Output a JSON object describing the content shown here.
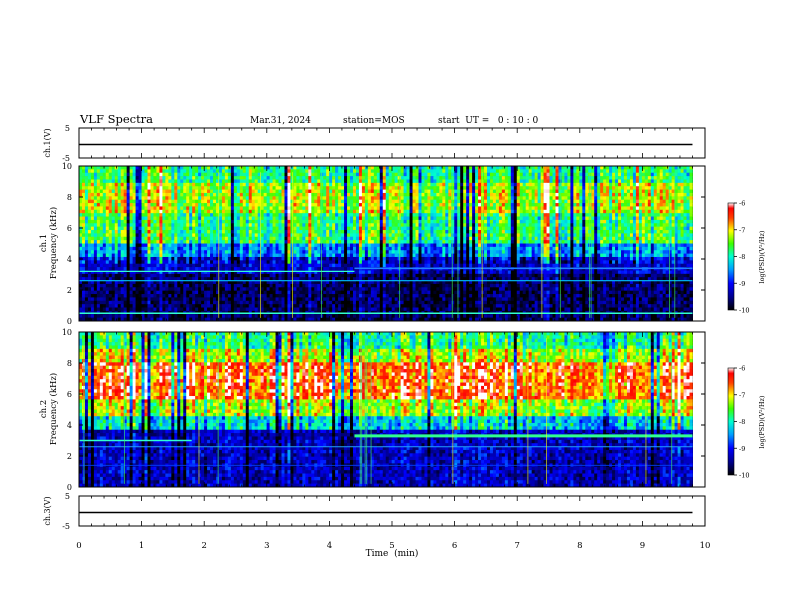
{
  "header": {
    "title": "VLF Spectra",
    "date": "Mar.31, 2024",
    "station": "station=MOS",
    "start_ut": "start  UT =   0 : 10 : 0"
  },
  "chart_data": [
    {
      "type": "line",
      "panel": "ch1-voltage",
      "ylabel": "ch.1(V)",
      "ylim": [
        -5,
        5
      ],
      "y_ticks": [
        "5",
        "-5"
      ],
      "x": [
        0,
        9.8
      ],
      "values": [
        -0.5,
        -0.5
      ],
      "xlim": [
        0,
        10
      ]
    },
    {
      "type": "heatmap",
      "panel": "ch1-spectrogram",
      "ylabel": "ch.1\nFrequency (kHz)",
      "ylim": [
        0,
        10
      ],
      "y_ticks": [
        "0",
        "2",
        "4",
        "6",
        "8",
        "10"
      ],
      "xlim": [
        0,
        10
      ],
      "data_extent_min": 9.8,
      "colorbar": {
        "label": "log(PSD)(V²/Hz)",
        "min": -10,
        "max": -6,
        "ticks": [
          "-6",
          "-7",
          "-8",
          "-9",
          "-10"
        ]
      },
      "features": {
        "broadband_hiss_khz": [
          4.5,
          10
        ],
        "peak_band_khz": [
          7,
          9
        ],
        "narrowband_lines_khz": [
          0.5,
          2.6,
          3.2,
          3.4
        ]
      }
    },
    {
      "type": "heatmap",
      "panel": "ch2-spectrogram",
      "ylabel": "ch.2\nFrequency (kHz)",
      "ylim": [
        0,
        10
      ],
      "y_ticks": [
        "0",
        "2",
        "4",
        "6",
        "8",
        "10"
      ],
      "xlim": [
        0,
        10
      ],
      "data_extent_min": 9.8,
      "colorbar": {
        "label": "log(PSD)(V²/Hz)",
        "min": -10,
        "max": -6,
        "ticks": [
          "-6",
          "-7",
          "-8",
          "-9",
          "-10"
        ]
      },
      "features": {
        "broadband_hiss_khz": [
          4,
          10
        ],
        "peak_band_khz": [
          5.5,
          8
        ],
        "narrowband_lines_khz": [
          2.6,
          3.0,
          3.3
        ]
      }
    },
    {
      "type": "line",
      "panel": "ch3-voltage",
      "ylabel": "ch.3(V)",
      "ylim": [
        -5,
        5
      ],
      "y_ticks": [
        "5",
        "-5"
      ],
      "x": [
        0,
        9.8
      ],
      "values": [
        -0.5,
        -0.5
      ],
      "xlim": [
        0,
        10
      ]
    }
  ],
  "x_axis": {
    "label": "Time  (min)",
    "ticks": [
      "0",
      "1",
      "2",
      "3",
      "4",
      "5",
      "6",
      "7",
      "8",
      "9",
      "10"
    ]
  },
  "colors": {
    "frame": "#000000",
    "background": "#ffffff"
  }
}
